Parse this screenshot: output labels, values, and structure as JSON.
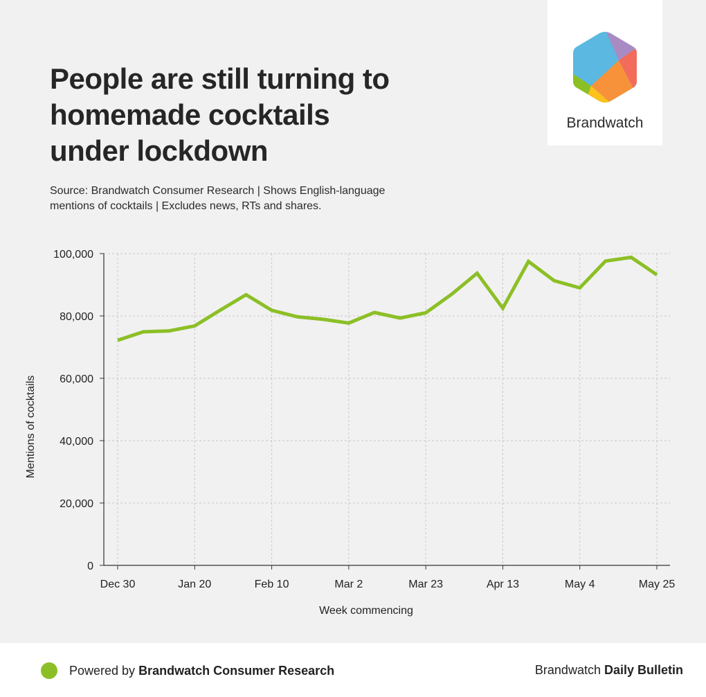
{
  "header": {
    "title": "People are still turning to homemade cocktails under lockdown",
    "subtitle": "Source: Brandwatch Consumer Research | Shows English-language mentions of cocktails | Excludes news, RTs and shares."
  },
  "logo": {
    "text": "Brandwatch",
    "icon": "brandwatch-hexagon-logo",
    "colors": [
      "#5bb8e0",
      "#a98bc4",
      "#f26b5b",
      "#f7923a",
      "#fcc21b",
      "#8cbf26"
    ]
  },
  "chart_data": {
    "type": "line",
    "xlabel": "Week commencing",
    "ylabel": "Mentions of cocktails",
    "ylim": [
      0,
      100000
    ],
    "yticks": [
      0,
      20000,
      40000,
      60000,
      80000,
      100000
    ],
    "ytick_labels": [
      "0",
      "20,000",
      "40,000",
      "60,000",
      "80,000",
      "100,000"
    ],
    "x": [
      "Dec 30",
      "Jan 6",
      "Jan 13",
      "Jan 20",
      "Jan 27",
      "Feb 3",
      "Feb 10",
      "Feb 17",
      "Feb 24",
      "Mar 2",
      "Mar 9",
      "Mar 16",
      "Mar 23",
      "Mar 30",
      "Apr 6",
      "Apr 13",
      "Apr 20",
      "Apr 27",
      "May 4",
      "May 11",
      "May 18",
      "May 25"
    ],
    "xtick_labels": [
      "Dec 30",
      "",
      "",
      "Jan 20",
      "",
      "",
      "Feb 10",
      "",
      "",
      "Mar 2",
      "",
      "",
      "Mar 23",
      "",
      "",
      "Apr 13",
      "",
      "",
      "May 4",
      "",
      "",
      "May 25"
    ],
    "series": [
      {
        "values": [
          72200,
          74900,
          75200,
          76800,
          81900,
          86800,
          81800,
          79700,
          78900,
          77700,
          81100,
          79300,
          81000,
          86900,
          93700,
          82500,
          97500,
          91300,
          89000,
          97600,
          98800,
          93200
        ],
        "color": "#8cbf26"
      }
    ],
    "grid": true
  },
  "footer": {
    "left_prefix": "Powered by ",
    "left_bold": "Brandwatch Consumer Research",
    "right_prefix": "Brandwatch ",
    "right_bold": "Daily Bulletin",
    "dot_color": "#8cbf26"
  }
}
